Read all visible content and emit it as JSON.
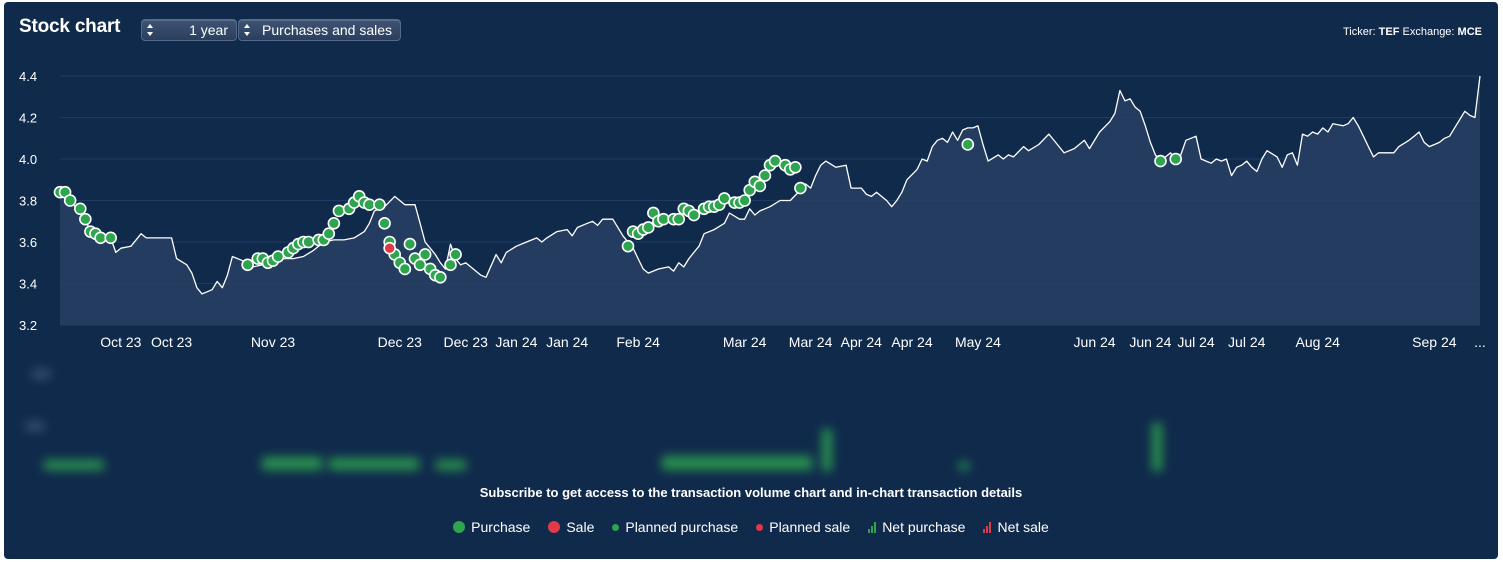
{
  "header": {
    "title": "Stock chart",
    "period_select": "1 year",
    "type_select": "Purchases and sales",
    "ticker_label": "Ticker:",
    "ticker": "TEF",
    "exchange_label": "Exchange:",
    "exchange": "MCE"
  },
  "colors": {
    "background": "#102a4c",
    "line": "#ffffff",
    "area": "#2a4366",
    "purchase": "#2ea44f",
    "sale": "#e03a47",
    "grid": "#1f3b63"
  },
  "chart_data": {
    "type": "line",
    "title": "Stock chart",
    "xlabel": "",
    "ylabel": "",
    "ylim": [
      3.2,
      4.4
    ],
    "yticks": [
      "3.2",
      "3.4",
      "3.6",
      "3.8",
      "4.0",
      "4.2",
      "4.4"
    ],
    "x_tick_labels": [
      "Oct 23",
      "Oct 23",
      "Nov 23",
      "Dec 23",
      "Dec 23",
      "Jan 24",
      "Jan 24",
      "Feb 24",
      "Mar 24",
      "Mar 24",
      "Apr 24",
      "Apr 24",
      "May 24",
      "Jun 24",
      "Jun 24",
      "Jul 24",
      "Jul 24",
      "Aug 24",
      "Sep 24",
      "..."
    ],
    "x_tick_positions": [
      12,
      22,
      42,
      67,
      80,
      90,
      100,
      114,
      135,
      148,
      158,
      168,
      181,
      204,
      215,
      224,
      234,
      248,
      271,
      280
    ],
    "x_max": 280,
    "price": [
      [
        0,
        3.84
      ],
      [
        2,
        3.8
      ],
      [
        4,
        3.74
      ],
      [
        6,
        3.66
      ],
      [
        8,
        3.62
      ],
      [
        10,
        3.62
      ],
      [
        11,
        3.55
      ],
      [
        12,
        3.57
      ],
      [
        14,
        3.58
      ],
      [
        16,
        3.64
      ],
      [
        17,
        3.62
      ],
      [
        20,
        3.62
      ],
      [
        22,
        3.62
      ],
      [
        23,
        3.52
      ],
      [
        25,
        3.49
      ],
      [
        26,
        3.45
      ],
      [
        27,
        3.38
      ],
      [
        28,
        3.35
      ],
      [
        29,
        3.36
      ],
      [
        30,
        3.37
      ],
      [
        31,
        3.41
      ],
      [
        32,
        3.38
      ],
      [
        33,
        3.44
      ],
      [
        34,
        3.53
      ],
      [
        36,
        3.51
      ],
      [
        38,
        3.48
      ],
      [
        40,
        3.49
      ],
      [
        42,
        3.49
      ],
      [
        44,
        3.52
      ],
      [
        46,
        3.52
      ],
      [
        48,
        3.53
      ],
      [
        50,
        3.56
      ],
      [
        52,
        3.6
      ],
      [
        54,
        3.61
      ],
      [
        56,
        3.61
      ],
      [
        58,
        3.62
      ],
      [
        60,
        3.65
      ],
      [
        61,
        3.69
      ],
      [
        62,
        3.75
      ],
      [
        64,
        3.77
      ],
      [
        66,
        3.82
      ],
      [
        68,
        3.78
      ],
      [
        70,
        3.78
      ],
      [
        71,
        3.69
      ],
      [
        72,
        3.6
      ],
      [
        73,
        3.57
      ],
      [
        74,
        3.54
      ],
      [
        75,
        3.5
      ],
      [
        76,
        3.47
      ],
      [
        77,
        3.59
      ],
      [
        78,
        3.52
      ],
      [
        79,
        3.49
      ],
      [
        80,
        3.5
      ],
      [
        82,
        3.46
      ],
      [
        83,
        3.44
      ],
      [
        84,
        3.43
      ],
      [
        86,
        3.54
      ],
      [
        87,
        3.5
      ],
      [
        88,
        3.55
      ],
      [
        90,
        3.58
      ],
      [
        92,
        3.6
      ],
      [
        94,
        3.62
      ],
      [
        95,
        3.6
      ],
      [
        96,
        3.62
      ],
      [
        98,
        3.65
      ],
      [
        100,
        3.66
      ],
      [
        101,
        3.63
      ],
      [
        102,
        3.67
      ],
      [
        104,
        3.69
      ],
      [
        105,
        3.7
      ],
      [
        106,
        3.68
      ],
      [
        107,
        3.71
      ],
      [
        109,
        3.71
      ],
      [
        111,
        3.63
      ],
      [
        113,
        3.57
      ],
      [
        114,
        3.52
      ],
      [
        115,
        3.47
      ],
      [
        116,
        3.45
      ],
      [
        118,
        3.47
      ],
      [
        120,
        3.48
      ],
      [
        121,
        3.46
      ],
      [
        122,
        3.5
      ],
      [
        123,
        3.48
      ],
      [
        124,
        3.52
      ],
      [
        125,
        3.55
      ],
      [
        126,
        3.58
      ],
      [
        127,
        3.64
      ],
      [
        129,
        3.66
      ],
      [
        131,
        3.69
      ],
      [
        132,
        3.74
      ],
      [
        134,
        3.71
      ],
      [
        135,
        3.71
      ],
      [
        136,
        3.76
      ],
      [
        137,
        3.73
      ],
      [
        138,
        3.75
      ],
      [
        140,
        3.77
      ],
      [
        142,
        3.8
      ],
      [
        144,
        3.8
      ],
      [
        146,
        3.85
      ],
      [
        147,
        3.88
      ],
      [
        148,
        3.86
      ],
      [
        149,
        3.92
      ],
      [
        150,
        3.97
      ],
      [
        151,
        3.99
      ],
      [
        153,
        3.96
      ],
      [
        155,
        3.97
      ],
      [
        156,
        3.86
      ],
      [
        158,
        3.86
      ],
      [
        159,
        3.83
      ],
      [
        160,
        3.82
      ],
      [
        161,
        3.84
      ],
      [
        163,
        3.8
      ],
      [
        164,
        3.77
      ],
      [
        165,
        3.8
      ],
      [
        166,
        3.84
      ],
      [
        167,
        3.9
      ],
      [
        169,
        3.95
      ],
      [
        170,
        4.0
      ],
      [
        171,
        3.99
      ],
      [
        172,
        4.06
      ],
      [
        173,
        4.09
      ],
      [
        174,
        4.1
      ],
      [
        175,
        4.08
      ],
      [
        176,
        4.13
      ],
      [
        177,
        4.09
      ],
      [
        178,
        4.14
      ],
      [
        179,
        4.15
      ],
      [
        180,
        4.15
      ],
      [
        181,
        4.16
      ],
      [
        182,
        4.07
      ],
      [
        183,
        3.99
      ],
      [
        185,
        4.02
      ],
      [
        186,
        4.0
      ],
      [
        187,
        4.02
      ],
      [
        188,
        4.01
      ],
      [
        190,
        4.06
      ],
      [
        191,
        4.04
      ],
      [
        193,
        4.07
      ],
      [
        195,
        4.12
      ],
      [
        197,
        4.06
      ],
      [
        198,
        4.03
      ],
      [
        200,
        4.05
      ],
      [
        202,
        4.09
      ],
      [
        203,
        4.05
      ],
      [
        205,
        4.13
      ],
      [
        207,
        4.18
      ],
      [
        208,
        4.22
      ],
      [
        209,
        4.33
      ],
      [
        210,
        4.28
      ],
      [
        211,
        4.29
      ],
      [
        212,
        4.25
      ],
      [
        213,
        4.23
      ],
      [
        214,
        4.16
      ],
      [
        215,
        4.08
      ],
      [
        216,
        4.02
      ],
      [
        217,
        3.99
      ],
      [
        218,
        4.01
      ],
      [
        219,
        4.03
      ],
      [
        220,
        3.99
      ],
      [
        221,
        4.02
      ],
      [
        222,
        4.09
      ],
      [
        223,
        4.1
      ],
      [
        224,
        4.11
      ],
      [
        225,
        4.0
      ],
      [
        226,
        3.99
      ],
      [
        227,
        3.98
      ],
      [
        228,
        4.0
      ],
      [
        229,
        3.99
      ],
      [
        230,
        4.0
      ],
      [
        231,
        3.92
      ],
      [
        232,
        3.96
      ],
      [
        233,
        3.97
      ],
      [
        234,
        3.99
      ],
      [
        235,
        3.96
      ],
      [
        236,
        3.94
      ],
      [
        237,
        4.0
      ],
      [
        238,
        4.04
      ],
      [
        240,
        4.01
      ],
      [
        241,
        3.96
      ],
      [
        242,
        4.02
      ],
      [
        243,
        4.03
      ],
      [
        244,
        3.97
      ],
      [
        245,
        4.12
      ],
      [
        246,
        4.11
      ],
      [
        247,
        4.13
      ],
      [
        248,
        4.12
      ],
      [
        249,
        4.15
      ],
      [
        250,
        4.13
      ],
      [
        251,
        4.17
      ],
      [
        253,
        4.16
      ],
      [
        254,
        4.17
      ],
      [
        255,
        4.2
      ],
      [
        256,
        4.16
      ],
      [
        257,
        4.11
      ],
      [
        258,
        4.06
      ],
      [
        259,
        4.01
      ],
      [
        260,
        4.03
      ],
      [
        262,
        4.03
      ],
      [
        263,
        4.03
      ],
      [
        264,
        4.06
      ],
      [
        266,
        4.09
      ],
      [
        267,
        4.11
      ],
      [
        268,
        4.13
      ],
      [
        269,
        4.08
      ],
      [
        270,
        4.06
      ],
      [
        271,
        4.07
      ],
      [
        272,
        4.08
      ],
      [
        273,
        4.1
      ],
      [
        274,
        4.11
      ],
      [
        275,
        4.15
      ],
      [
        276,
        4.19
      ],
      [
        277,
        4.23
      ],
      [
        278,
        4.21
      ],
      [
        279,
        4.2
      ],
      [
        280,
        4.4
      ]
    ],
    "series": [
      {
        "name": "Purchase",
        "points": [
          [
            0,
            3.84
          ],
          [
            1,
            3.84
          ],
          [
            2,
            3.8
          ],
          [
            4,
            3.76
          ],
          [
            5,
            3.71
          ],
          [
            6,
            3.65
          ],
          [
            7,
            3.64
          ],
          [
            8,
            3.62
          ],
          [
            10,
            3.62
          ],
          [
            37,
            3.49
          ],
          [
            39,
            3.52
          ],
          [
            40,
            3.52
          ],
          [
            41,
            3.5
          ],
          [
            42,
            3.51
          ],
          [
            43,
            3.53
          ],
          [
            45,
            3.55
          ],
          [
            46,
            3.57
          ],
          [
            47,
            3.59
          ],
          [
            48,
            3.6
          ],
          [
            49,
            3.6
          ],
          [
            51,
            3.61
          ],
          [
            52,
            3.61
          ],
          [
            53,
            3.64
          ],
          [
            54,
            3.69
          ],
          [
            55,
            3.75
          ],
          [
            57,
            3.76
          ],
          [
            58,
            3.79
          ],
          [
            59,
            3.82
          ],
          [
            60,
            3.79
          ],
          [
            61,
            3.78
          ],
          [
            63,
            3.78
          ],
          [
            64,
            3.69
          ],
          [
            65,
            3.6
          ],
          [
            66,
            3.54
          ],
          [
            67,
            3.5
          ],
          [
            68,
            3.47
          ],
          [
            69,
            3.59
          ],
          [
            70,
            3.52
          ],
          [
            71,
            3.49
          ],
          [
            72,
            3.54
          ],
          [
            73,
            3.47
          ],
          [
            74,
            3.44
          ],
          [
            75,
            3.43
          ],
          [
            77,
            3.49
          ],
          [
            78,
            3.54
          ],
          [
            112,
            3.58
          ],
          [
            113,
            3.65
          ],
          [
            114,
            3.64
          ],
          [
            115,
            3.66
          ],
          [
            116,
            3.67
          ],
          [
            117,
            3.74
          ],
          [
            118,
            3.7
          ],
          [
            119,
            3.71
          ],
          [
            121,
            3.71
          ],
          [
            122,
            3.71
          ],
          [
            123,
            3.76
          ],
          [
            124,
            3.75
          ],
          [
            125,
            3.73
          ],
          [
            127,
            3.76
          ],
          [
            128,
            3.77
          ],
          [
            129,
            3.77
          ],
          [
            130,
            3.78
          ],
          [
            131,
            3.81
          ],
          [
            133,
            3.79
          ],
          [
            134,
            3.79
          ],
          [
            135,
            3.8
          ],
          [
            136,
            3.85
          ],
          [
            137,
            3.89
          ],
          [
            138,
            3.87
          ],
          [
            139,
            3.92
          ],
          [
            140,
            3.97
          ],
          [
            141,
            3.99
          ],
          [
            143,
            3.97
          ],
          [
            144,
            3.95
          ],
          [
            145,
            3.96
          ],
          [
            146,
            3.86
          ],
          [
            179,
            4.07
          ],
          [
            217,
            3.99
          ],
          [
            220,
            4.0
          ]
        ]
      },
      {
        "name": "Sale",
        "points": [
          [
            65,
            3.57
          ]
        ]
      }
    ],
    "blurred_volume_labels": [
      "A",
      "B"
    ]
  },
  "notice": "Subscribe to get access to the transaction volume chart and in-chart transaction details",
  "legend": [
    {
      "label": "Purchase",
      "kind": "big-dot",
      "color": "#2ea44f"
    },
    {
      "label": "Sale",
      "kind": "big-dot",
      "color": "#e03a47"
    },
    {
      "label": "Planned purchase",
      "kind": "small-dot",
      "color": "#2ea44f"
    },
    {
      "label": "Planned sale",
      "kind": "small-dot",
      "color": "#e03a47"
    },
    {
      "label": "Net purchase",
      "kind": "bars",
      "color": "#2ea44f"
    },
    {
      "label": "Net sale",
      "kind": "bars",
      "color": "#e03a47"
    }
  ]
}
